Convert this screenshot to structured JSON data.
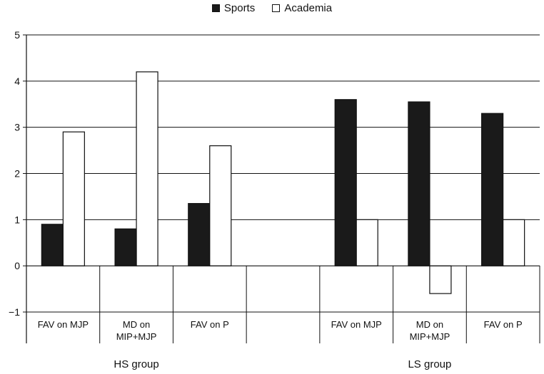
{
  "chart_data": {
    "type": "bar",
    "title": "",
    "xlabel": "",
    "ylabel": "",
    "ylim": [
      -1,
      5
    ],
    "yticks": [
      5,
      4,
      3,
      2,
      1,
      0,
      -1
    ],
    "yticks_text": [
      "5",
      "4",
      "3",
      "2",
      "1",
      "0",
      "−1"
    ],
    "grid": true,
    "legend_position": "top-center",
    "categories": [
      {
        "line1": "FAV on MJP",
        "line2": ""
      },
      {
        "line1": "MD on",
        "line2": "MIP+MJP"
      },
      {
        "line1": "FAV on P",
        "line2": ""
      },
      {
        "line1": "",
        "line2": ""
      },
      {
        "line1": "FAV on MJP",
        "line2": ""
      },
      {
        "line1": "MD on",
        "line2": "MIP+MJP"
      },
      {
        "line1": "FAV on P",
        "line2": ""
      }
    ],
    "groups": [
      {
        "label": "HS group",
        "categories": [
          0,
          1,
          2
        ]
      },
      {
        "label": "LS group",
        "categories": [
          4,
          5,
          6
        ]
      }
    ],
    "series": [
      {
        "name": "Sports",
        "color": "#1a1a1a",
        "values": [
          0.9,
          0.8,
          1.35,
          null,
          3.6,
          3.55,
          3.3
        ]
      },
      {
        "name": "Academia",
        "color": "#ffffff",
        "values": [
          2.9,
          4.2,
          2.6,
          null,
          1.0,
          -0.6,
          1.0
        ]
      }
    ]
  }
}
